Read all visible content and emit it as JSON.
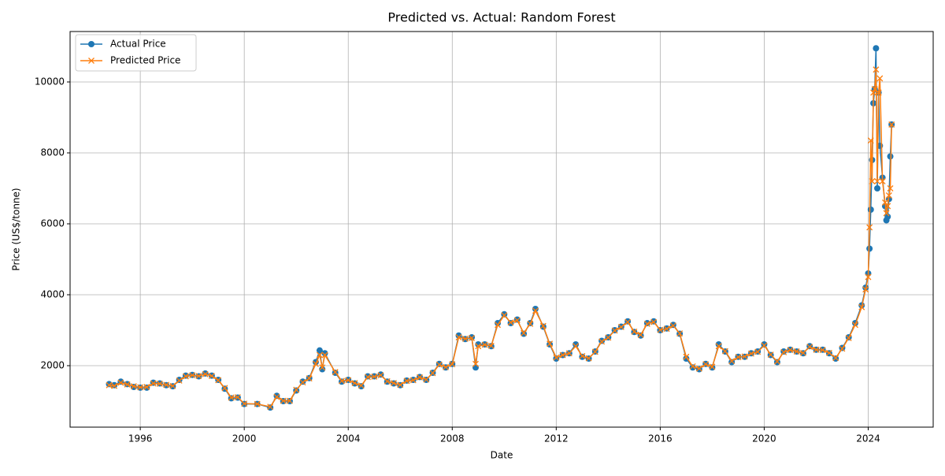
{
  "chart_data": {
    "type": "line",
    "title": "Predicted vs. Actual: Random Forest",
    "x_label": "Date",
    "y_label": "Price (US$/tonne)",
    "x": [
      1994.8,
      1995.0,
      1995.25,
      1995.5,
      1995.75,
      1996.0,
      1996.25,
      1996.5,
      1996.75,
      1997.0,
      1997.25,
      1997.5,
      1997.75,
      1998.0,
      1998.25,
      1998.5,
      1998.75,
      1999.0,
      1999.25,
      1999.5,
      1999.75,
      2000.0,
      2000.5,
      2001.0,
      2001.25,
      2001.5,
      2001.75,
      2002.0,
      2002.25,
      2002.5,
      2002.75,
      2002.9,
      2003.0,
      2003.1,
      2003.5,
      2003.75,
      2004.0,
      2004.25,
      2004.5,
      2004.75,
      2005.0,
      2005.25,
      2005.5,
      2005.75,
      2006.0,
      2006.25,
      2006.5,
      2006.75,
      2007.0,
      2007.25,
      2007.5,
      2007.75,
      2008.0,
      2008.25,
      2008.5,
      2008.75,
      2008.9,
      2009.0,
      2009.25,
      2009.5,
      2009.75,
      2010.0,
      2010.25,
      2010.5,
      2010.75,
      2011.0,
      2011.2,
      2011.5,
      2011.75,
      2012.0,
      2012.25,
      2012.5,
      2012.75,
      2013.0,
      2013.25,
      2013.5,
      2013.75,
      2014.0,
      2014.25,
      2014.5,
      2014.75,
      2015.0,
      2015.25,
      2015.5,
      2015.75,
      2016.0,
      2016.25,
      2016.5,
      2016.75,
      2017.0,
      2017.25,
      2017.5,
      2017.75,
      2018.0,
      2018.25,
      2018.5,
      2018.75,
      2019.0,
      2019.25,
      2019.5,
      2019.75,
      2020.0,
      2020.25,
      2020.5,
      2020.75,
      2021.0,
      2021.25,
      2021.5,
      2021.75,
      2022.0,
      2022.25,
      2022.5,
      2022.75,
      2023.0,
      2023.25,
      2023.5,
      2023.75,
      2023.9,
      2024.0,
      2024.05,
      2024.1,
      2024.15,
      2024.2,
      2024.25,
      2024.3,
      2024.35,
      2024.4,
      2024.45,
      2024.55,
      2024.65,
      2024.7,
      2024.75,
      2024.8,
      2024.85,
      2024.9
    ],
    "series": [
      {
        "name": "Actual Price",
        "color": "#1f77b4",
        "marker": "o",
        "values": [
          1480,
          1450,
          1550,
          1480,
          1400,
          1380,
          1380,
          1520,
          1500,
          1450,
          1420,
          1600,
          1720,
          1740,
          1700,
          1780,
          1720,
          1600,
          1350,
          1080,
          1100,
          920,
          920,
          820,
          1150,
          1000,
          1000,
          1300,
          1550,
          1650,
          2100,
          2430,
          1900,
          2350,
          1800,
          1550,
          1600,
          1500,
          1420,
          1700,
          1700,
          1750,
          1550,
          1500,
          1450,
          1580,
          1600,
          1680,
          1600,
          1800,
          2050,
          1950,
          2050,
          2850,
          2750,
          2800,
          1950,
          2600,
          2600,
          2550,
          3200,
          3450,
          3200,
          3300,
          2900,
          3200,
          3600,
          3100,
          2600,
          2200,
          2300,
          2350,
          2600,
          2250,
          2200,
          2400,
          2700,
          2800,
          3000,
          3100,
          3250,
          2950,
          2850,
          3200,
          3250,
          3000,
          3050,
          3150,
          2900,
          2200,
          1950,
          1900,
          2050,
          1950,
          2600,
          2400,
          2100,
          2250,
          2250,
          2350,
          2400,
          2600,
          2300,
          2100,
          2400,
          2450,
          2400,
          2350,
          2550,
          2450,
          2450,
          2350,
          2200,
          2500,
          2800,
          3200,
          3700,
          4200,
          4600,
          5300,
          6400,
          7800,
          9400,
          9800,
          10950,
          7000,
          9700,
          8200,
          7300,
          6500,
          6100,
          6200,
          6700,
          7900,
          8800
        ]
      },
      {
        "name": "Predicted Price",
        "color": "#ff7f0e",
        "marker": "x",
        "values": [
          1450,
          1430,
          1520,
          1470,
          1420,
          1390,
          1400,
          1500,
          1490,
          1460,
          1430,
          1580,
          1700,
          1730,
          1710,
          1760,
          1710,
          1590,
          1370,
          1100,
          1110,
          930,
          920,
          840,
          1120,
          1010,
          1010,
          1320,
          1530,
          1640,
          2050,
          2300,
          1950,
          2300,
          1820,
          1570,
          1590,
          1510,
          1440,
          1680,
          1690,
          1730,
          1560,
          1510,
          1460,
          1570,
          1590,
          1670,
          1610,
          1790,
          2030,
          1960,
          2040,
          2800,
          2760,
          2780,
          2050,
          2550,
          2590,
          2560,
          3150,
          3420,
          3220,
          3280,
          2920,
          3180,
          3550,
          3120,
          2620,
          2230,
          2300,
          2350,
          2550,
          2270,
          2210,
          2390,
          2680,
          2790,
          2990,
          3090,
          3230,
          2960,
          2870,
          3180,
          3230,
          3010,
          3040,
          3130,
          2910,
          2250,
          1980,
          1920,
          2040,
          1970,
          2550,
          2410,
          2130,
          2240,
          2260,
          2340,
          2390,
          2570,
          2310,
          2120,
          2380,
          2440,
          2400,
          2360,
          2530,
          2450,
          2440,
          2360,
          2220,
          2480,
          2780,
          3150,
          3650,
          4150,
          4500,
          5900,
          8350,
          7200,
          9700,
          9800,
          10350,
          7200,
          9700,
          10100,
          7200,
          6600,
          6300,
          6500,
          6800,
          7000,
          8800
        ]
      }
    ],
    "xlim": [
      1993.3,
      2026.5
    ],
    "xticks": [
      1996,
      2000,
      2004,
      2008,
      2012,
      2016,
      2020,
      2024
    ],
    "ylim": [
      267,
      11422
    ],
    "yticks": [
      2000,
      4000,
      6000,
      8000,
      10000
    ],
    "grid": true,
    "legend": "upper left"
  }
}
